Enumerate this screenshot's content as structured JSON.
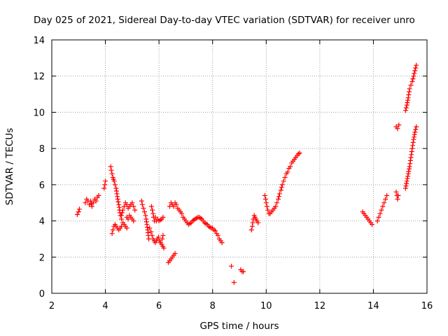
{
  "chart_data": {
    "type": "scatter",
    "title": "Day 025 of 2021, Sidereal Day-to-day VTEC variation (SDTVAR) for receiver unro",
    "xlabel": "GPS time / hours",
    "ylabel": "SDTVAR / TECUs",
    "xlim": [
      2,
      16
    ],
    "ylim": [
      0,
      14
    ],
    "xticks": [
      "2",
      "4",
      "6",
      "8",
      "10",
      "12",
      "14",
      "16"
    ],
    "yticks": [
      "0",
      "2",
      "4",
      "6",
      "8",
      "10",
      "12",
      "14"
    ],
    "grid": true,
    "marker": "+",
    "color": "#ff0000",
    "segments": [
      [
        [
          2.95,
          4.35
        ],
        [
          3.0,
          4.5
        ],
        [
          3.03,
          4.65
        ]
      ],
      [
        [
          3.25,
          5.0
        ],
        [
          3.3,
          5.2
        ],
        [
          3.35,
          5.1
        ],
        [
          3.4,
          4.9
        ],
        [
          3.45,
          5.1
        ],
        [
          3.5,
          4.8
        ],
        [
          3.55,
          5.0
        ],
        [
          3.6,
          5.2
        ],
        [
          3.65,
          5.1
        ],
        [
          3.7,
          5.3
        ],
        [
          3.75,
          5.4
        ]
      ],
      [
        [
          3.95,
          5.8
        ],
        [
          3.98,
          6.0
        ],
        [
          4.0,
          6.2
        ]
      ],
      [
        [
          4.2,
          7.0
        ],
        [
          4.22,
          6.8
        ],
        [
          4.25,
          6.6
        ],
        [
          4.28,
          6.4
        ],
        [
          4.3,
          6.3
        ],
        [
          4.33,
          6.2
        ],
        [
          4.36,
          6.0
        ],
        [
          4.4,
          5.8
        ],
        [
          4.43,
          5.5
        ],
        [
          4.46,
          5.2
        ],
        [
          4.5,
          4.9
        ],
        [
          4.53,
          4.6
        ],
        [
          4.56,
          4.3
        ],
        [
          4.6,
          4.1
        ],
        [
          4.65,
          3.9
        ],
        [
          4.7,
          3.8
        ],
        [
          4.75,
          3.7
        ],
        [
          4.8,
          3.6
        ]
      ],
      [
        [
          4.25,
          3.3
        ],
        [
          4.28,
          3.5
        ],
        [
          4.32,
          3.7
        ],
        [
          4.36,
          3.8
        ],
        [
          4.4,
          3.7
        ],
        [
          4.45,
          3.6
        ],
        [
          4.5,
          3.5
        ],
        [
          4.55,
          3.6
        ],
        [
          4.6,
          3.7
        ]
      ],
      [
        [
          4.6,
          4.3
        ],
        [
          4.65,
          4.6
        ],
        [
          4.7,
          4.8
        ],
        [
          4.75,
          5.0
        ],
        [
          4.8,
          4.9
        ],
        [
          4.85,
          4.7
        ],
        [
          4.9,
          4.8
        ],
        [
          4.95,
          4.9
        ],
        [
          5.0,
          5.0
        ],
        [
          5.05,
          4.8
        ],
        [
          5.1,
          4.6
        ]
      ],
      [
        [
          4.8,
          4.2
        ],
        [
          4.85,
          4.1
        ],
        [
          4.9,
          4.3
        ],
        [
          4.95,
          4.2
        ],
        [
          5.0,
          4.1
        ],
        [
          5.05,
          4.0
        ]
      ],
      [
        [
          5.35,
          5.1
        ],
        [
          5.38,
          4.9
        ],
        [
          5.42,
          4.7
        ],
        [
          5.46,
          4.5
        ],
        [
          5.5,
          4.3
        ],
        [
          5.52,
          4.1
        ],
        [
          5.55,
          3.8
        ],
        [
          5.58,
          3.5
        ],
        [
          5.6,
          3.2
        ],
        [
          5.62,
          3.0
        ]
      ],
      [
        [
          5.72,
          4.8
        ],
        [
          5.75,
          4.6
        ],
        [
          5.78,
          4.4
        ],
        [
          5.8,
          4.2
        ],
        [
          5.83,
          4.0
        ],
        [
          5.86,
          4.2
        ]
      ],
      [
        [
          5.65,
          3.6
        ],
        [
          5.7,
          3.4
        ],
        [
          5.74,
          3.2
        ],
        [
          5.78,
          3.0
        ],
        [
          5.82,
          2.9
        ],
        [
          5.86,
          2.8
        ],
        [
          5.9,
          2.9
        ],
        [
          5.94,
          3.0
        ],
        [
          5.98,
          3.1
        ],
        [
          6.02,
          2.9
        ],
        [
          6.06,
          2.8
        ],
        [
          6.1,
          2.7
        ],
        [
          6.14,
          2.6
        ],
        [
          6.18,
          2.5
        ]
      ],
      [
        [
          5.9,
          4.0
        ],
        [
          5.95,
          4.1
        ],
        [
          6.0,
          4.0
        ],
        [
          6.05,
          4.05
        ],
        [
          6.1,
          4.1
        ],
        [
          6.15,
          4.2
        ]
      ],
      [
        [
          6.12,
          3.0
        ],
        [
          6.15,
          3.2
        ]
      ],
      [
        [
          6.35,
          1.7
        ],
        [
          6.4,
          1.8
        ],
        [
          6.45,
          1.9
        ],
        [
          6.5,
          2.0
        ],
        [
          6.55,
          2.1
        ],
        [
          6.6,
          2.2
        ]
      ],
      [
        [
          6.4,
          4.8
        ],
        [
          6.45,
          5.0
        ],
        [
          6.5,
          4.9
        ],
        [
          6.55,
          4.8
        ],
        [
          6.6,
          5.0
        ],
        [
          6.65,
          4.9
        ],
        [
          6.7,
          4.7
        ],
        [
          6.75,
          4.6
        ],
        [
          6.8,
          4.5
        ],
        [
          6.85,
          4.4
        ],
        [
          6.9,
          4.2
        ],
        [
          6.95,
          4.1
        ],
        [
          7.0,
          4.0
        ],
        [
          7.05,
          3.9
        ],
        [
          7.1,
          3.8
        ],
        [
          7.15,
          3.85
        ],
        [
          7.2,
          3.9
        ],
        [
          7.25,
          4.0
        ],
        [
          7.3,
          4.05
        ],
        [
          7.35,
          4.1
        ],
        [
          7.4,
          4.15
        ],
        [
          7.45,
          4.2
        ],
        [
          7.5,
          4.2
        ],
        [
          7.55,
          4.15
        ],
        [
          7.6,
          4.1
        ],
        [
          7.65,
          4.0
        ],
        [
          7.7,
          3.9
        ],
        [
          7.75,
          3.85
        ],
        [
          7.8,
          3.8
        ],
        [
          7.85,
          3.7
        ],
        [
          7.9,
          3.65
        ],
        [
          7.95,
          3.6
        ],
        [
          8.0,
          3.6
        ],
        [
          8.05,
          3.5
        ],
        [
          8.1,
          3.45
        ],
        [
          8.15,
          3.3
        ],
        [
          8.2,
          3.2
        ],
        [
          8.25,
          3.0
        ],
        [
          8.3,
          2.9
        ],
        [
          8.35,
          2.8
        ]
      ],
      [
        [
          8.7,
          1.5
        ]
      ],
      [
        [
          8.8,
          0.6
        ]
      ],
      [
        [
          9.05,
          1.3
        ],
        [
          9.1,
          1.2
        ],
        [
          9.15,
          1.2
        ]
      ],
      [
        [
          9.45,
          3.5
        ],
        [
          9.48,
          3.7
        ],
        [
          9.5,
          3.9
        ],
        [
          9.52,
          4.1
        ],
        [
          9.55,
          4.3
        ],
        [
          9.58,
          4.2
        ],
        [
          9.62,
          4.1
        ],
        [
          9.65,
          4.0
        ],
        [
          9.7,
          3.9
        ]
      ],
      [
        [
          9.95,
          5.4
        ],
        [
          9.98,
          5.2
        ],
        [
          10.0,
          5.0
        ],
        [
          10.03,
          4.8
        ],
        [
          10.06,
          4.6
        ],
        [
          10.1,
          4.4
        ],
        [
          10.15,
          4.4
        ],
        [
          10.2,
          4.5
        ],
        [
          10.25,
          4.6
        ],
        [
          10.3,
          4.7
        ],
        [
          10.35,
          4.8
        ],
        [
          10.4,
          5.0
        ],
        [
          10.45,
          5.2
        ],
        [
          10.5,
          5.5
        ],
        [
          10.55,
          5.7
        ],
        [
          10.6,
          6.0
        ],
        [
          10.65,
          6.2
        ],
        [
          10.7,
          6.4
        ],
        [
          10.75,
          6.6
        ],
        [
          10.8,
          6.7
        ],
        [
          10.85,
          6.9
        ],
        [
          10.9,
          7.0
        ],
        [
          10.95,
          7.2
        ],
        [
          11.0,
          7.3
        ],
        [
          11.05,
          7.4
        ],
        [
          11.1,
          7.5
        ],
        [
          11.15,
          7.6
        ],
        [
          11.2,
          7.7
        ],
        [
          11.25,
          7.75
        ]
      ],
      [
        [
          13.6,
          4.5
        ],
        [
          13.65,
          4.4
        ],
        [
          13.7,
          4.3
        ],
        [
          13.75,
          4.2
        ],
        [
          13.8,
          4.1
        ],
        [
          13.85,
          4.0
        ],
        [
          13.9,
          3.9
        ],
        [
          13.95,
          3.8
        ]
      ],
      [
        [
          14.15,
          4.0
        ],
        [
          14.2,
          4.2
        ],
        [
          14.25,
          4.4
        ],
        [
          14.3,
          4.6
        ],
        [
          14.35,
          4.8
        ],
        [
          14.4,
          5.0
        ],
        [
          14.45,
          5.2
        ],
        [
          14.5,
          5.4
        ]
      ],
      [
        [
          14.85,
          5.6
        ],
        [
          14.88,
          5.4
        ],
        [
          14.9,
          5.2
        ],
        [
          14.93,
          5.4
        ]
      ],
      [
        [
          14.85,
          9.2
        ],
        [
          14.9,
          9.1
        ],
        [
          14.95,
          9.3
        ]
      ],
      [
        [
          15.2,
          5.8
        ],
        [
          15.25,
          6.2
        ],
        [
          15.3,
          6.6
        ],
        [
          15.35,
          7.0
        ],
        [
          15.4,
          7.5
        ],
        [
          15.45,
          8.0
        ],
        [
          15.5,
          8.5
        ],
        [
          15.55,
          8.9
        ],
        [
          15.6,
          9.2
        ]
      ],
      [
        [
          15.2,
          10.1
        ],
        [
          15.25,
          10.4
        ],
        [
          15.3,
          10.8
        ],
        [
          15.35,
          11.3
        ],
        [
          15.4,
          11.5
        ],
        [
          15.45,
          11.7
        ],
        [
          15.5,
          12.0
        ],
        [
          15.55,
          12.3
        ],
        [
          15.6,
          12.6
        ]
      ]
    ]
  }
}
